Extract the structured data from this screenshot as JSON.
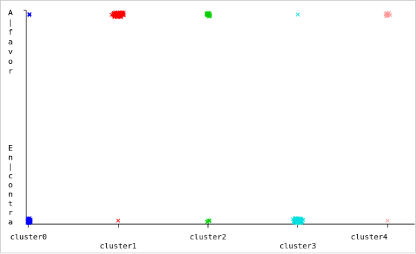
{
  "chart_data": {
    "type": "scatter",
    "categories": [
      "cluster0",
      "cluster1",
      "cluster2",
      "cluster3",
      "cluster4"
    ],
    "y_categories": [
      "Encontra",
      "Afavor"
    ],
    "y_labels": {
      "top": [
        "A",
        "|",
        "f",
        "a",
        "v",
        "o",
        "r"
      ],
      "bottom": [
        "E",
        "n",
        "|",
        "c",
        "o",
        "n",
        "t",
        "r",
        "a"
      ]
    },
    "marker": "x",
    "series": [
      {
        "category": "cluster0",
        "color": "#0000ff",
        "counts": {
          "Afavor": 4,
          "Encontra": 110
        }
      },
      {
        "category": "cluster1",
        "color": "#ff0000",
        "counts": {
          "Afavor": 160,
          "Encontra": 1
        }
      },
      {
        "category": "cluster2",
        "color": "#00d000",
        "counts": {
          "Afavor": 25,
          "Encontra": 5
        }
      },
      {
        "category": "cluster3",
        "color": "#00e0e0",
        "counts": {
          "Afavor": 1,
          "Encontra": 150
        }
      },
      {
        "category": "cluster4",
        "color": "#ff9999",
        "counts": {
          "Afavor": 20,
          "Encontra": 1
        }
      }
    ]
  }
}
